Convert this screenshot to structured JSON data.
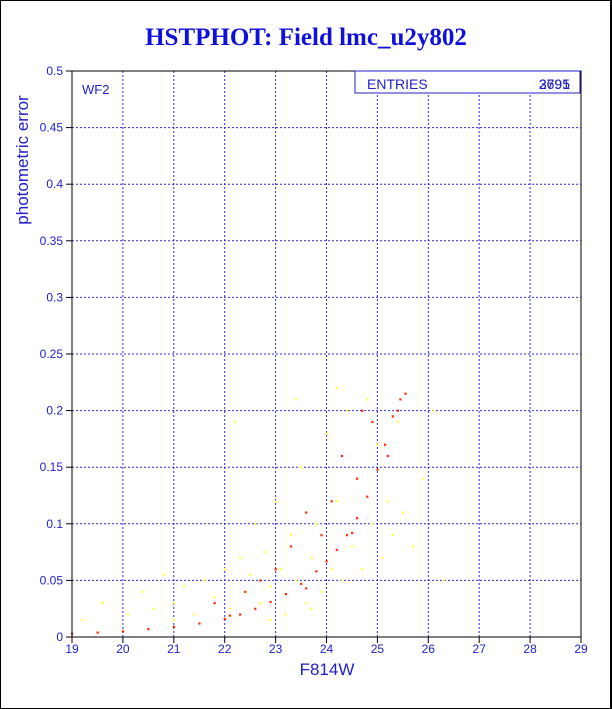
{
  "page": {
    "title": "HSTPHOT: Field lmc_u2y802"
  },
  "colors": {
    "accent": "#2020cc",
    "grid": "#2b2bd8",
    "series_a": "#ff2a00",
    "series_b": "#ffff44"
  },
  "chart_data": {
    "type": "scatter",
    "title": "HSTPHOT: Field lmc_u2y802",
    "xlabel": "F814W",
    "ylabel": "photometric error",
    "xlim": [
      19,
      29
    ],
    "ylim": [
      0,
      0.5
    ],
    "xticks": [
      "19",
      "20",
      "21",
      "22",
      "23",
      "24",
      "25",
      "26",
      "27",
      "28",
      "29"
    ],
    "yticks": [
      "0",
      "0.05",
      "0.1",
      "0.15",
      "0.2",
      "0.25",
      "0.3",
      "0.35",
      "0.4",
      "0.45",
      "0.5"
    ],
    "grid": true,
    "panel_label": "WF2",
    "stats_box": {
      "label": "ENTRIES",
      "values": [
        "3791",
        "2695"
      ],
      "placement": "top-right"
    },
    "series": [
      {
        "color": "#ffff44",
        "points": [
          [
            19.2,
            0.015
          ],
          [
            19.6,
            0.03
          ],
          [
            20.1,
            0.02
          ],
          [
            20.4,
            0.04
          ],
          [
            20.6,
            0.025
          ],
          [
            20.8,
            0.055
          ],
          [
            21.0,
            0.03
          ],
          [
            21.2,
            0.045
          ],
          [
            21.4,
            0.02
          ],
          [
            21.6,
            0.05
          ],
          [
            21.8,
            0.035
          ],
          [
            22.0,
            0.06
          ],
          [
            22.1,
            0.025
          ],
          [
            22.3,
            0.07
          ],
          [
            22.4,
            0.04
          ],
          [
            22.5,
            0.055
          ],
          [
            22.6,
            0.1
          ],
          [
            22.7,
            0.03
          ],
          [
            22.8,
            0.075
          ],
          [
            22.9,
            0.045
          ],
          [
            23.0,
            0.12
          ],
          [
            23.1,
            0.06
          ],
          [
            23.2,
            0.02
          ],
          [
            23.3,
            0.09
          ],
          [
            23.4,
            0.05
          ],
          [
            23.5,
            0.15
          ],
          [
            23.6,
            0.03
          ],
          [
            23.7,
            0.07
          ],
          [
            23.8,
            0.1
          ],
          [
            23.9,
            0.04
          ],
          [
            24.0,
            0.18
          ],
          [
            24.1,
            0.06
          ],
          [
            24.2,
            0.12
          ],
          [
            24.3,
            0.05
          ],
          [
            24.4,
            0.2
          ],
          [
            24.5,
            0.08
          ],
          [
            24.6,
            0.14
          ],
          [
            24.7,
            0.06
          ],
          [
            24.8,
            0.21
          ],
          [
            24.9,
            0.1
          ],
          [
            25.0,
            0.17
          ],
          [
            25.1,
            0.07
          ],
          [
            25.2,
            0.12
          ],
          [
            25.3,
            0.09
          ],
          [
            25.4,
            0.19
          ],
          [
            25.5,
            0.11
          ],
          [
            25.7,
            0.08
          ],
          [
            25.9,
            0.14
          ],
          [
            26.1,
            0.2
          ],
          [
            26.3,
            0.05
          ],
          [
            22.2,
            0.19
          ],
          [
            23.4,
            0.21
          ],
          [
            24.2,
            0.22
          ],
          [
            21.0,
            0.015
          ],
          [
            22.9,
            0.015
          ],
          [
            23.7,
            0.025
          ]
        ]
      },
      {
        "color": "#ff2a00",
        "points": [
          [
            19.0,
            0.003
          ],
          [
            19.5,
            0.004
          ],
          [
            20.0,
            0.005
          ],
          [
            20.5,
            0.007
          ],
          [
            21.0,
            0.009
          ],
          [
            21.5,
            0.012
          ],
          [
            22.0,
            0.016
          ],
          [
            22.3,
            0.02
          ],
          [
            22.6,
            0.025
          ],
          [
            22.9,
            0.031
          ],
          [
            23.2,
            0.038
          ],
          [
            23.5,
            0.047
          ],
          [
            23.8,
            0.058
          ],
          [
            24.0,
            0.067
          ],
          [
            24.2,
            0.077
          ],
          [
            24.4,
            0.09
          ],
          [
            24.6,
            0.105
          ],
          [
            24.8,
            0.124
          ],
          [
            25.0,
            0.148
          ],
          [
            25.15,
            0.17
          ],
          [
            25.3,
            0.195
          ],
          [
            25.45,
            0.21
          ],
          [
            25.55,
            0.215
          ],
          [
            23.0,
            0.06
          ],
          [
            23.6,
            0.11
          ],
          [
            23.9,
            0.09
          ],
          [
            24.3,
            0.16
          ],
          [
            24.6,
            0.14
          ],
          [
            24.9,
            0.19
          ],
          [
            22.7,
            0.05
          ],
          [
            23.3,
            0.08
          ],
          [
            24.1,
            0.12
          ],
          [
            24.7,
            0.2
          ],
          [
            22.4,
            0.04
          ],
          [
            21.8,
            0.03
          ],
          [
            22.1,
            0.019
          ],
          [
            23.6,
            0.043
          ],
          [
            24.5,
            0.092
          ],
          [
            25.2,
            0.16
          ],
          [
            25.4,
            0.2
          ]
        ]
      }
    ]
  }
}
